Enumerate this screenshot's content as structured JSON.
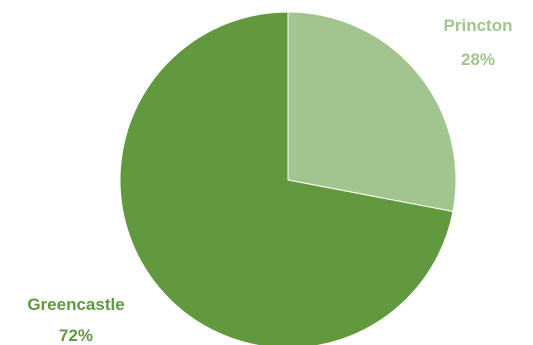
{
  "chart_data": {
    "type": "pie",
    "title": "",
    "slices": [
      {
        "label": "Princton",
        "value": 28,
        "display": "28%",
        "color": "#a2c48e",
        "label_color": "#a2c48e"
      },
      {
        "label": "Greencastle",
        "value": 72,
        "display": "72%",
        "color": "#62993f",
        "label_color": "#62993f"
      }
    ],
    "start_angle_deg": 0,
    "direction": "clockwise",
    "legend": "none",
    "data_labels": "outside, category name and percentage"
  }
}
